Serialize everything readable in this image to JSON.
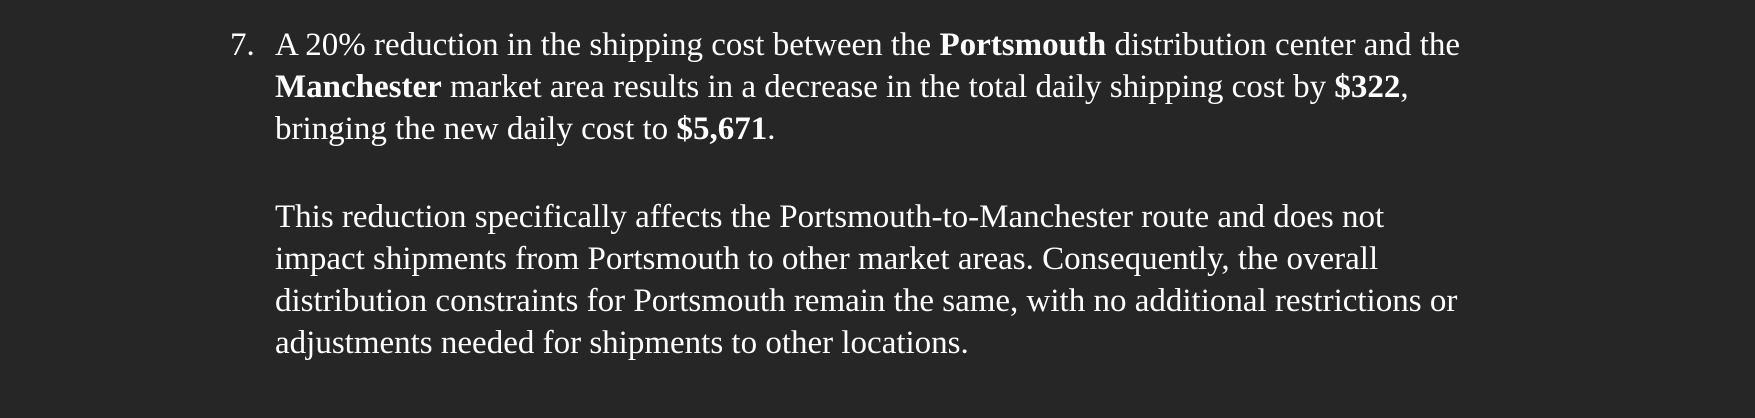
{
  "item": {
    "number": "7.",
    "paragraph1": {
      "line1": {
        "t1": "A 20% reduction in the shipping cost between the ",
        "b1": "Portsmouth",
        "t2": " distribution center and the"
      },
      "line2": {
        "b1": "Manchester",
        "t1": " market area results in a decrease in the total daily shipping cost by ",
        "b2": "$322",
        "t2": ","
      },
      "line3": {
        "t1": "bringing the new daily cost to ",
        "b1": "$5,671",
        "t2": "."
      }
    },
    "paragraph2": {
      "line1": "This reduction specifically affects the Portsmouth-to-Manchester route and does not",
      "line2": "impact shipments from Portsmouth to other market areas. Consequently, the overall",
      "line3": "distribution constraints for Portsmouth remain the same, with no additional restrictions or",
      "line4": "adjustments needed for shipments to other locations."
    }
  }
}
